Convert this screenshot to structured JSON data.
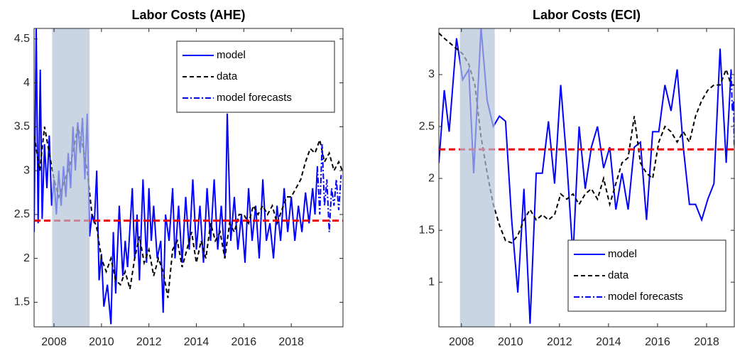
{
  "chart_data": [
    {
      "type": "line",
      "title": "Labor Costs (AHE)",
      "xlim": [
        2007.16,
        2020.18
      ],
      "xticks": [
        2008,
        2010,
        2012,
        2014,
        2016,
        2018
      ],
      "ylim": [
        1.22,
        4.62
      ],
      "yticks": [
        1.5,
        2,
        2.5,
        3,
        3.5,
        4,
        4.5
      ],
      "shaded_region": [
        2007.92,
        2009.5
      ],
      "shade_color": "#b4c3d9",
      "reference_line": 2.43,
      "reference_color": "#e8000b",
      "legend": "upper right",
      "series": [
        {
          "name": "model",
          "color": "#0000ff",
          "dash": "solid",
          "x": [
            2007.16,
            2007.25,
            2007.33,
            2007.42,
            2007.5,
            2007.6,
            2007.7,
            2007.8,
            2007.9,
            2008.0,
            2008.1,
            2008.2,
            2008.3,
            2008.4,
            2008.5,
            2008.6,
            2008.7,
            2008.8,
            2008.9,
            2009.0,
            2009.1,
            2009.2,
            2009.3,
            2009.4,
            2009.5,
            2009.6,
            2009.7,
            2009.8,
            2009.9,
            2010.0,
            2010.1,
            2010.25,
            2010.4,
            2010.5,
            2010.6,
            2010.75,
            2010.9,
            2011.0,
            2011.1,
            2011.3,
            2011.4,
            2011.5,
            2011.6,
            2011.75,
            2011.9,
            2012.0,
            2012.1,
            2012.2,
            2012.35,
            2012.5,
            2012.6,
            2012.7,
            2012.85,
            2013.0,
            2013.1,
            2013.25,
            2013.4,
            2013.55,
            2013.7,
            2013.85,
            2014.0,
            2014.15,
            2014.3,
            2014.45,
            2014.6,
            2014.75,
            2014.9,
            2015.05,
            2015.2,
            2015.3,
            2015.45,
            2015.6,
            2015.75,
            2015.9,
            2016.05,
            2016.2,
            2016.35,
            2016.5,
            2016.65,
            2016.8,
            2016.95,
            2017.1,
            2017.25,
            2017.4,
            2017.55,
            2017.7,
            2017.85,
            2018.0,
            2018.15,
            2018.3,
            2018.45,
            2018.6,
            2018.75,
            2018.9,
            2019.0,
            2019.1
          ],
          "values": [
            2.3,
            4.65,
            2.4,
            4.15,
            2.45,
            3.3,
            2.8,
            3.4,
            2.6,
            2.9,
            2.5,
            3.0,
            2.6,
            3.05,
            2.7,
            3.2,
            2.8,
            3.5,
            3.0,
            3.55,
            3.2,
            3.6,
            2.9,
            3.65,
            2.25,
            2.5,
            2.4,
            3.0,
            1.75,
            2.05,
            1.45,
            1.7,
            1.25,
            2.3,
            1.6,
            2.6,
            1.8,
            2.2,
            1.9,
            2.8,
            2.0,
            2.5,
            1.75,
            2.9,
            1.95,
            2.8,
            2.2,
            2.6,
            2.0,
            2.2,
            1.38,
            2.5,
            2.2,
            2.8,
            2.0,
            2.6,
            1.95,
            2.7,
            2.1,
            2.9,
            2.1,
            2.6,
            1.95,
            2.8,
            2.2,
            2.9,
            2.1,
            2.6,
            2.0,
            3.65,
            2.2,
            2.7,
            2.1,
            2.5,
            1.95,
            2.8,
            2.2,
            2.6,
            2.0,
            2.9,
            2.2,
            2.4,
            2.0,
            2.6,
            2.2,
            2.8,
            2.3,
            2.7,
            2.2,
            2.6,
            2.3,
            2.75,
            2.4,
            2.8,
            2.5,
            3.05
          ]
        },
        {
          "name": "data",
          "color": "#000000",
          "dash": "dashed",
          "x": [
            2007.16,
            2007.4,
            2007.6,
            2007.8,
            2008.0,
            2008.2,
            2008.4,
            2008.6,
            2008.8,
            2009.0,
            2009.2,
            2009.4,
            2009.6,
            2009.8,
            2010.0,
            2010.2,
            2010.4,
            2010.6,
            2010.8,
            2011.0,
            2011.2,
            2011.4,
            2011.6,
            2011.8,
            2012.0,
            2012.2,
            2012.4,
            2012.6,
            2012.8,
            2013.0,
            2013.2,
            2013.4,
            2013.6,
            2013.8,
            2014.0,
            2014.2,
            2014.4,
            2014.6,
            2014.8,
            2015.0,
            2015.2,
            2015.4,
            2015.6,
            2015.8,
            2016.0,
            2016.2,
            2016.4,
            2016.6,
            2016.8,
            2017.0,
            2017.2,
            2017.4,
            2017.6,
            2017.8,
            2018.0,
            2018.2,
            2018.4,
            2018.6,
            2018.8,
            2019.0,
            2019.2,
            2019.4,
            2019.6,
            2019.8,
            2020.0,
            2020.15
          ],
          "values": [
            3.4,
            3.0,
            3.5,
            3.2,
            2.9,
            2.7,
            2.85,
            3.0,
            3.2,
            3.5,
            3.3,
            3.0,
            2.5,
            2.35,
            2.0,
            1.85,
            2.0,
            1.75,
            1.7,
            1.85,
            1.65,
            2.0,
            2.25,
            1.95,
            2.1,
            1.8,
            2.0,
            1.85,
            1.55,
            2.1,
            2.2,
            1.9,
            2.1,
            2.3,
            1.95,
            2.2,
            2.0,
            2.4,
            2.2,
            2.3,
            2.0,
            2.4,
            2.3,
            2.5,
            2.5,
            2.4,
            2.6,
            2.5,
            2.6,
            2.5,
            2.6,
            2.4,
            2.55,
            2.7,
            2.7,
            2.8,
            2.9,
            3.1,
            3.25,
            3.2,
            3.35,
            3.1,
            3.2,
            3.0,
            3.1,
            3.0
          ]
        },
        {
          "name": "model forecasts",
          "color": "#0000ff",
          "dash": "dashdot",
          "x": [
            2019.1,
            2019.2,
            2019.3,
            2019.4,
            2019.5,
            2019.6,
            2019.7,
            2019.8,
            2019.9,
            2020.0,
            2020.1
          ],
          "values": [
            3.05,
            2.5,
            3.3,
            2.6,
            2.9,
            2.3,
            2.8,
            2.6,
            2.9,
            2.55,
            2.95
          ]
        }
      ]
    },
    {
      "type": "line",
      "title": "Labor Costs (ECI)",
      "xlim": [
        2007.08,
        2019.13
      ],
      "xticks": [
        2008,
        2010,
        2012,
        2014,
        2016,
        2018
      ],
      "ylim": [
        0.57,
        3.445
      ],
      "yticks": [
        1,
        1.5,
        2,
        2.5,
        3
      ],
      "shaded_region": [
        2007.94,
        2009.36
      ],
      "shade_color": "#b4c3d9",
      "reference_line": 2.28,
      "reference_color": "#e8000b",
      "legend": "lower right",
      "series": [
        {
          "name": "model",
          "color": "#0000ff",
          "dash": "solid",
          "x": [
            2007.08,
            2007.3,
            2007.5,
            2007.8,
            2008.05,
            2008.3,
            2008.5,
            2008.8,
            2009.05,
            2009.3,
            2009.55,
            2009.8,
            2010.05,
            2010.3,
            2010.55,
            2010.8,
            2011.05,
            2011.3,
            2011.55,
            2011.8,
            2012.05,
            2012.3,
            2012.55,
            2012.8,
            2013.05,
            2013.3,
            2013.55,
            2013.8,
            2014.05,
            2014.3,
            2014.55,
            2014.8,
            2015.05,
            2015.3,
            2015.55,
            2015.8,
            2016.05,
            2016.3,
            2016.55,
            2016.8,
            2017.05,
            2017.3,
            2017.55,
            2017.8,
            2018.05,
            2018.3,
            2018.55,
            2018.8,
            2019.0
          ],
          "values": [
            2.15,
            2.85,
            2.45,
            3.35,
            2.95,
            3.05,
            2.05,
            3.45,
            2.75,
            2.5,
            2.6,
            2.55,
            1.6,
            0.9,
            1.9,
            0.6,
            2.05,
            2.05,
            2.55,
            1.95,
            2.9,
            2.15,
            1.25,
            2.5,
            1.9,
            2.3,
            2.5,
            2.1,
            2.3,
            1.7,
            2.05,
            1.7,
            2.3,
            2.35,
            1.6,
            2.45,
            2.45,
            2.9,
            2.65,
            3.05,
            2.3,
            1.75,
            1.75,
            1.6,
            1.8,
            1.95,
            3.25,
            2.15,
            3.05
          ]
        },
        {
          "name": "data",
          "color": "#000000",
          "dash": "dashed",
          "x": [
            2007.08,
            2007.3,
            2007.55,
            2007.8,
            2008.05,
            2008.3,
            2008.55,
            2008.8,
            2009.05,
            2009.3,
            2009.55,
            2009.8,
            2010.05,
            2010.3,
            2010.55,
            2010.8,
            2011.05,
            2011.3,
            2011.55,
            2011.8,
            2012.05,
            2012.3,
            2012.55,
            2012.8,
            2013.05,
            2013.3,
            2013.55,
            2013.8,
            2014.05,
            2014.3,
            2014.55,
            2014.8,
            2015.05,
            2015.3,
            2015.55,
            2015.8,
            2016.05,
            2016.3,
            2016.55,
            2016.8,
            2017.05,
            2017.3,
            2017.55,
            2017.8,
            2018.05,
            2018.3,
            2018.55,
            2018.8,
            2019.0,
            2019.13
          ],
          "values": [
            3.4,
            3.35,
            3.3,
            3.25,
            3.2,
            3.1,
            2.9,
            2.4,
            2.05,
            1.75,
            1.55,
            1.4,
            1.38,
            1.45,
            1.6,
            1.7,
            1.6,
            1.65,
            1.6,
            1.65,
            1.85,
            1.8,
            1.85,
            1.75,
            1.85,
            1.9,
            1.8,
            2.0,
            1.75,
            1.95,
            2.15,
            2.2,
            2.6,
            2.15,
            2.05,
            2.0,
            2.35,
            2.5,
            2.45,
            2.35,
            2.45,
            2.35,
            2.6,
            2.75,
            2.85,
            2.9,
            2.9,
            3.05,
            2.9,
            2.9
          ]
        },
        {
          "name": "model forecasts",
          "color": "#0000ff",
          "dash": "dashdot",
          "x": [
            2019.0,
            2019.05,
            2019.1,
            2019.13
          ],
          "values": [
            3.05,
            2.65,
            2.75,
            2.3
          ]
        }
      ]
    }
  ]
}
